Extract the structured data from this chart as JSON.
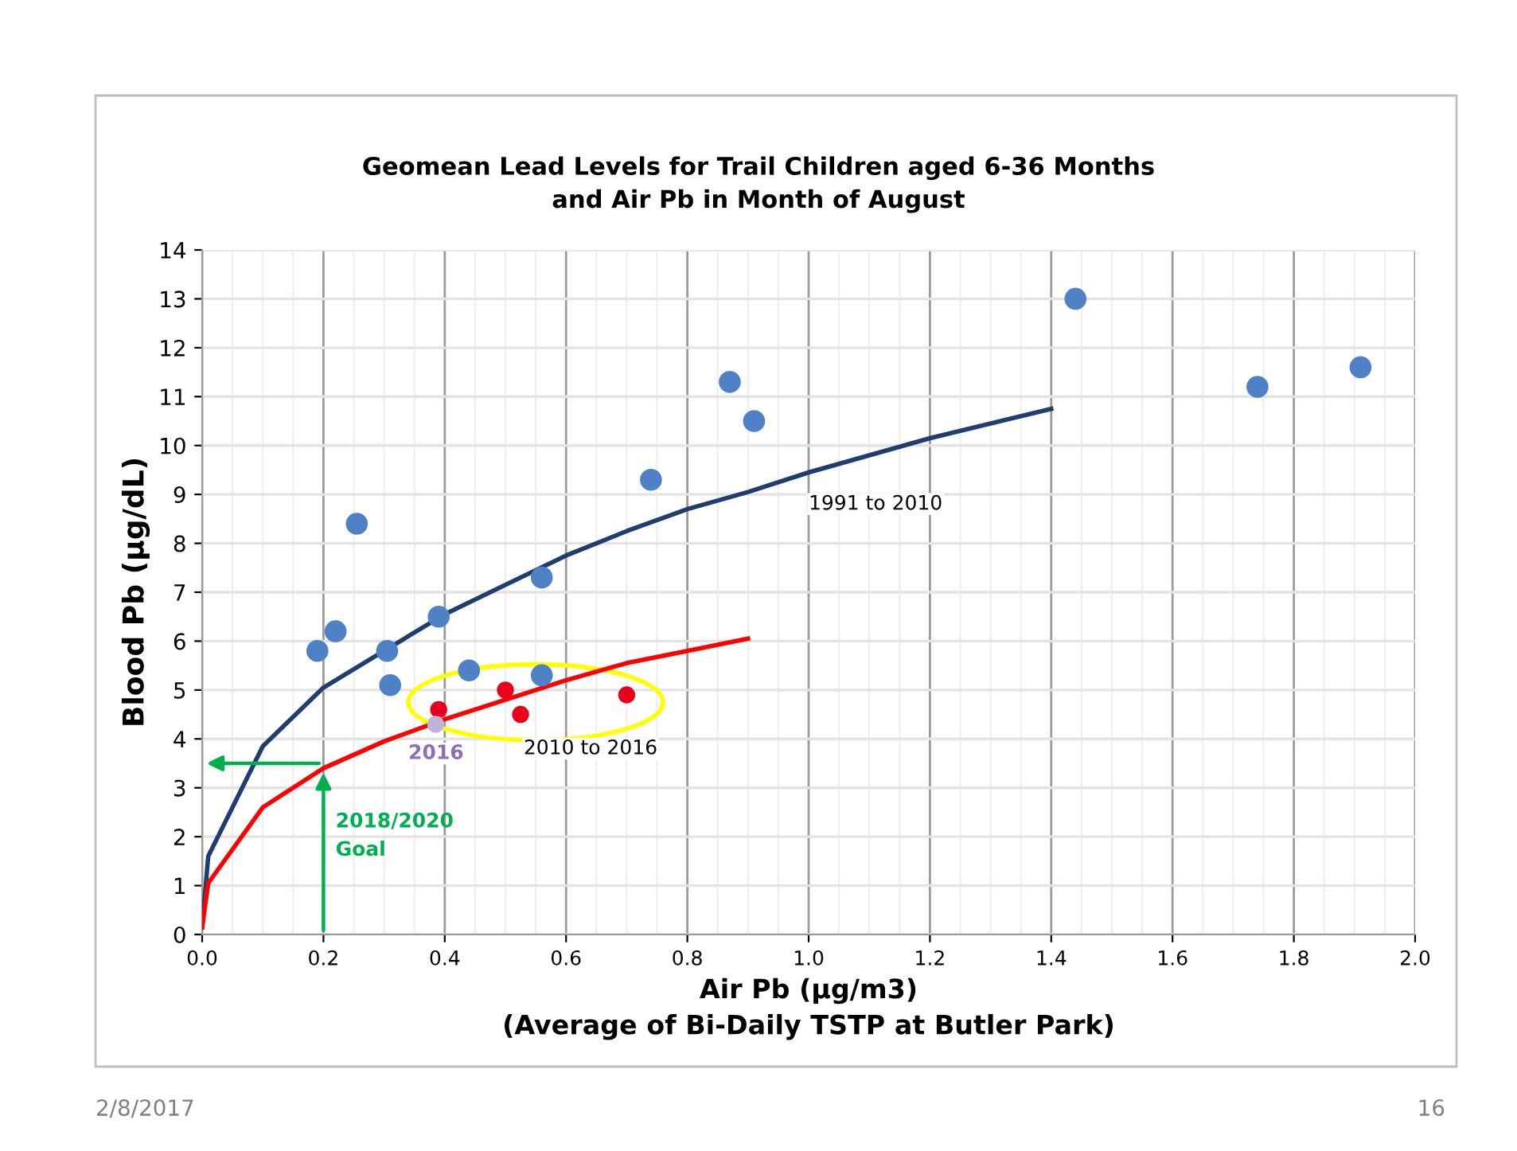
{
  "chart_data": {
    "type": "scatter",
    "title": "Geomean Lead Levels for Trail Children aged 6-36 Months\nand Air Pb in Month of August",
    "xlabel": "Air Pb (µg/m3)\n(Average of Bi-Daily TSTP at Butler Park)",
    "ylabel": "Blood Pb (µg/dL)",
    "xlim": [
      0,
      2.0
    ],
    "ylim": [
      0,
      14
    ],
    "xticks": [
      {
        "value": 0,
        "label": "0.0"
      },
      {
        "value": 0.2,
        "label": "0.2"
      },
      {
        "value": 0.4,
        "label": "0.4"
      },
      {
        "value": 0.6,
        "label": "0.6"
      },
      {
        "value": 0.8,
        "label": "0.8"
      },
      {
        "value": 1.0,
        "label": "1.0"
      },
      {
        "value": 1.2,
        "label": "1.2"
      },
      {
        "value": 1.4,
        "label": "1.4"
      },
      {
        "value": 1.6,
        "label": "1.6"
      },
      {
        "value": 1.8,
        "label": "1.8"
      },
      {
        "value": 2.0,
        "label": "2.0"
      }
    ],
    "yticks": [
      0,
      1,
      2,
      3,
      4,
      5,
      6,
      7,
      8,
      9,
      10,
      11,
      12,
      13,
      14
    ],
    "grid": true,
    "marker": "circle",
    "series": [
      {
        "color": "#4f81c7",
        "x": [
          0.19,
          0.22,
          0.255,
          0.305,
          0.31,
          0.39,
          0.44,
          0.56,
          0.56,
          0.74,
          0.87,
          0.91,
          1.44,
          1.74,
          1.91
        ],
        "values": [
          5.8,
          6.2,
          8.4,
          5.8,
          5.1,
          6.5,
          5.4,
          7.3,
          5.3,
          9.3,
          11.3,
          10.5,
          13.0,
          11.2,
          11.6
        ]
      },
      {
        "type": "line",
        "color": "#1f3d6e",
        "marker": "none",
        "x": [
          0,
          0.01,
          0.1,
          0.2,
          0.3,
          0.4,
          0.5,
          0.6,
          0.7,
          0.8,
          0.9,
          1.0,
          1.2,
          1.4
        ],
        "values": [
          0.15,
          1.6,
          3.85,
          5.05,
          5.8,
          6.55,
          7.15,
          7.75,
          8.25,
          8.7,
          9.05,
          9.45,
          10.15,
          10.75
        ]
      },
      {
        "type": "line",
        "color": "#ff0000",
        "marker": "none",
        "x": [
          0,
          0.01,
          0.1,
          0.2,
          0.3,
          0.4,
          0.5,
          0.6,
          0.7,
          0.8,
          0.9
        ],
        "values": [
          0.15,
          1.05,
          2.6,
          3.4,
          3.95,
          4.4,
          4.8,
          5.2,
          5.55,
          5.8,
          6.05
        ]
      },
      {
        "color": "#e8001c",
        "x": [
          0.39,
          0.5,
          0.525,
          0.7
        ],
        "values": [
          4.6,
          5.0,
          4.5,
          4.9
        ]
      },
      {
        "color": "#c0b3dc",
        "x": [
          0.385
        ],
        "values": [
          4.3
        ]
      }
    ],
    "annotations": [
      "1991 to 2010",
      "2010 to 2016",
      "2016",
      {
        "text": "2018/2020\nGoal",
        "x": 0.2,
        "y": 3.4
      },
      "2/8/2017",
      "16"
    ]
  }
}
